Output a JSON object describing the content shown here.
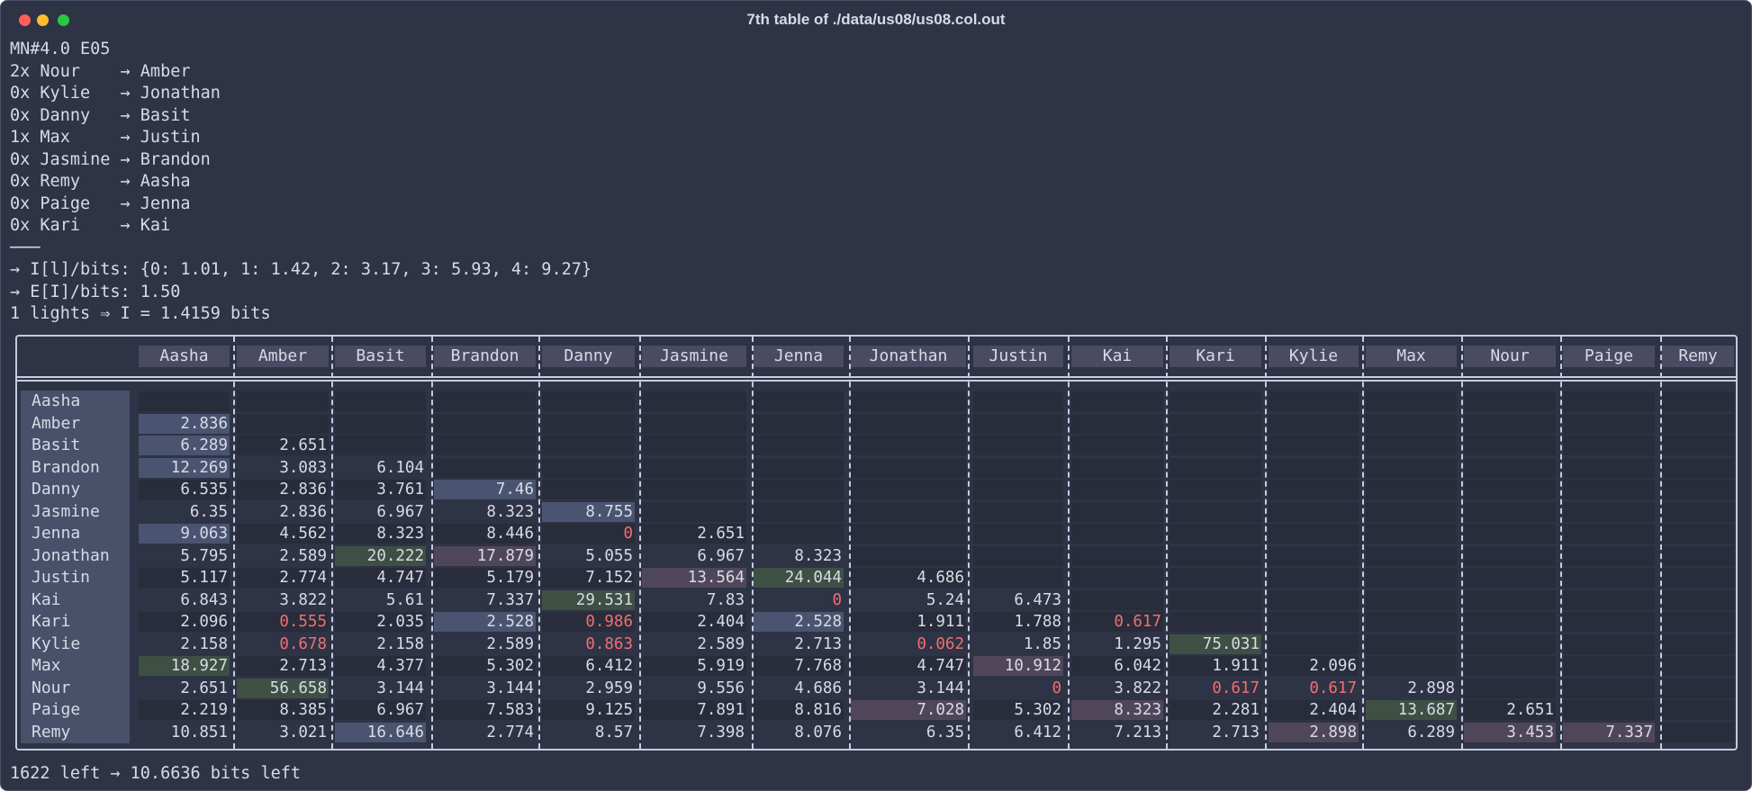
{
  "window": {
    "title": "7th table of ./data/us08/us08.col.out",
    "controls": [
      "close",
      "minimize",
      "maximize"
    ]
  },
  "terminal": {
    "header_lines": [
      "MN#4.0 E05",
      "2x Nour    → Amber",
      "0x Kylie   → Jonathan",
      "0x Danny   → Basit",
      "1x Max     → Justin",
      "0x Jasmine → Brandon",
      "0x Remy    → Aasha",
      "0x Paige   → Jenna",
      "0x Kari    → Kai",
      "───",
      "→ I[l]/bits: {0: 1.01, 1: 1.42, 2: 3.17, 3: 5.93, 4: 9.27}",
      "→ E[I]/bits: 1.50",
      "1 lights ⇒ I = 1.4159 bits"
    ],
    "footer": "1622 left → 10.6636 bits left"
  },
  "colors": {
    "text": "#d7dbe6",
    "low": "#f07070",
    "blue": "#4a5470",
    "green": "#3e4f44",
    "purple": "#50465a",
    "stripe_dark": "#282c3b"
  },
  "table": {
    "columns": [
      "Aasha",
      "Amber",
      "Basit",
      "Brandon",
      "Danny",
      "Jasmine",
      "Jenna",
      "Jonathan",
      "Justin",
      "Kai",
      "Kari",
      "Kylie",
      "Max",
      "Nour",
      "Paige",
      "Remy"
    ],
    "rows": [
      {
        "label": "Aasha",
        "cells": []
      },
      {
        "label": "Amber",
        "cells": [
          {
            "v": "2.836",
            "hl": "blue"
          }
        ]
      },
      {
        "label": "Basit",
        "cells": [
          {
            "v": "6.289",
            "hl": "blue"
          },
          {
            "v": "2.651"
          }
        ]
      },
      {
        "label": "Brandon",
        "cells": [
          {
            "v": "12.269",
            "hl": "blue"
          },
          {
            "v": "3.083"
          },
          {
            "v": "6.104"
          }
        ]
      },
      {
        "label": "Danny",
        "cells": [
          {
            "v": "6.535"
          },
          {
            "v": "2.836"
          },
          {
            "v": "3.761"
          },
          {
            "v": "7.46",
            "hl": "blue"
          }
        ]
      },
      {
        "label": "Jasmine",
        "cells": [
          {
            "v": "6.35"
          },
          {
            "v": "2.836"
          },
          {
            "v": "6.967"
          },
          {
            "v": "8.323"
          },
          {
            "v": "8.755",
            "hl": "blue"
          }
        ]
      },
      {
        "label": "Jenna",
        "cells": [
          {
            "v": "9.063",
            "hl": "blue"
          },
          {
            "v": "4.562"
          },
          {
            "v": "8.323"
          },
          {
            "v": "8.446"
          },
          {
            "v": "0",
            "low": true
          },
          {
            "v": "2.651"
          }
        ]
      },
      {
        "label": "Jonathan",
        "cells": [
          {
            "v": "5.795"
          },
          {
            "v": "2.589"
          },
          {
            "v": "20.222",
            "hl": "green"
          },
          {
            "v": "17.879",
            "hl": "purple"
          },
          {
            "v": "5.055"
          },
          {
            "v": "6.967"
          },
          {
            "v": "8.323"
          }
        ]
      },
      {
        "label": "Justin",
        "cells": [
          {
            "v": "5.117"
          },
          {
            "v": "2.774"
          },
          {
            "v": "4.747"
          },
          {
            "v": "5.179"
          },
          {
            "v": "7.152"
          },
          {
            "v": "13.564",
            "hl": "purple"
          },
          {
            "v": "24.044",
            "hl": "green"
          },
          {
            "v": "4.686"
          }
        ]
      },
      {
        "label": "Kai",
        "cells": [
          {
            "v": "6.843"
          },
          {
            "v": "3.822"
          },
          {
            "v": "5.61"
          },
          {
            "v": "7.337"
          },
          {
            "v": "29.531",
            "hl": "green"
          },
          {
            "v": "7.83"
          },
          {
            "v": "0",
            "low": true
          },
          {
            "v": "5.24"
          },
          {
            "v": "6.473"
          }
        ]
      },
      {
        "label": "Kari",
        "cells": [
          {
            "v": "2.096"
          },
          {
            "v": "0.555",
            "low": true
          },
          {
            "v": "2.035"
          },
          {
            "v": "2.528",
            "hl": "blue"
          },
          {
            "v": "0.986",
            "low": true
          },
          {
            "v": "2.404"
          },
          {
            "v": "2.528",
            "hl": "blue"
          },
          {
            "v": "1.911"
          },
          {
            "v": "1.788"
          },
          {
            "v": "0.617",
            "low": true
          }
        ]
      },
      {
        "label": "Kylie",
        "cells": [
          {
            "v": "2.158"
          },
          {
            "v": "0.678",
            "low": true
          },
          {
            "v": "2.158"
          },
          {
            "v": "2.589"
          },
          {
            "v": "0.863",
            "low": true
          },
          {
            "v": "2.589"
          },
          {
            "v": "2.713"
          },
          {
            "v": "0.062",
            "low": true
          },
          {
            "v": "1.85"
          },
          {
            "v": "1.295"
          },
          {
            "v": "75.031",
            "hl": "green"
          }
        ]
      },
      {
        "label": "Max",
        "cells": [
          {
            "v": "18.927",
            "hl": "green"
          },
          {
            "v": "2.713"
          },
          {
            "v": "4.377"
          },
          {
            "v": "5.302"
          },
          {
            "v": "6.412"
          },
          {
            "v": "5.919"
          },
          {
            "v": "7.768"
          },
          {
            "v": "4.747"
          },
          {
            "v": "10.912",
            "hl": "purple"
          },
          {
            "v": "6.042"
          },
          {
            "v": "1.911"
          },
          {
            "v": "2.096"
          }
        ]
      },
      {
        "label": "Nour",
        "cells": [
          {
            "v": "2.651"
          },
          {
            "v": "56.658",
            "hl": "green"
          },
          {
            "v": "3.144"
          },
          {
            "v": "3.144"
          },
          {
            "v": "2.959"
          },
          {
            "v": "9.556"
          },
          {
            "v": "4.686"
          },
          {
            "v": "3.144"
          },
          {
            "v": "0",
            "low": true
          },
          {
            "v": "3.822"
          },
          {
            "v": "0.617",
            "low": true
          },
          {
            "v": "0.617",
            "low": true
          },
          {
            "v": "2.898"
          }
        ]
      },
      {
        "label": "Paige",
        "cells": [
          {
            "v": "2.219"
          },
          {
            "v": "8.385"
          },
          {
            "v": "6.967"
          },
          {
            "v": "7.583"
          },
          {
            "v": "9.125"
          },
          {
            "v": "7.891"
          },
          {
            "v": "8.816"
          },
          {
            "v": "7.028",
            "hl": "purple"
          },
          {
            "v": "5.302"
          },
          {
            "v": "8.323",
            "hl": "purple"
          },
          {
            "v": "2.281"
          },
          {
            "v": "2.404"
          },
          {
            "v": "13.687",
            "hl": "green"
          },
          {
            "v": "2.651"
          }
        ]
      },
      {
        "label": "Remy",
        "cells": [
          {
            "v": "10.851"
          },
          {
            "v": "3.021"
          },
          {
            "v": "16.646",
            "hl": "blue"
          },
          {
            "v": "2.774"
          },
          {
            "v": "8.57"
          },
          {
            "v": "7.398"
          },
          {
            "v": "8.076"
          },
          {
            "v": "6.35"
          },
          {
            "v": "6.412"
          },
          {
            "v": "7.213"
          },
          {
            "v": "2.713"
          },
          {
            "v": "2.898",
            "hl": "purple"
          },
          {
            "v": "6.289"
          },
          {
            "v": "3.453",
            "hl": "purple"
          },
          {
            "v": "7.337",
            "hl": "purple"
          }
        ]
      }
    ]
  }
}
